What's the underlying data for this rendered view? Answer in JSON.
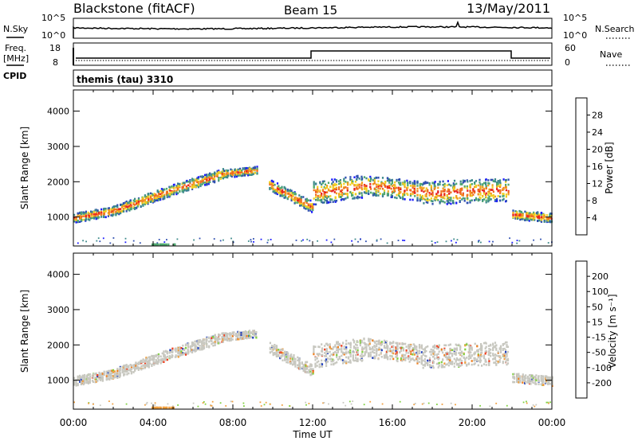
{
  "header": {
    "station": "Blackstone (fitACF)",
    "beam": "Beam 15",
    "date": "13/May/2011"
  },
  "noise_panel": {
    "left_label": "N.Sky",
    "left_ticks": [
      "10^5",
      "10^0"
    ],
    "right_label": "N.Search",
    "right_ticks": [
      "10^5",
      "10^0"
    ]
  },
  "freq_panel": {
    "left_label": "Freq.",
    "left_unit": "[MHz]",
    "left_ticks": [
      "18",
      "8"
    ],
    "right_label": "Nave",
    "right_ticks": [
      "60",
      "0"
    ],
    "cpid_label": "CPID",
    "cpid_value": "themis (tau) 3310"
  },
  "chart_data": [
    {
      "type": "heatmap",
      "name": "power",
      "ylabel": "Slant Range [km]",
      "xlabel": "",
      "yticks": [
        "1000",
        "2000",
        "3000",
        "4000"
      ],
      "xlim": [
        0,
        24
      ],
      "ylim": [
        180,
        4600
      ],
      "colorbar": {
        "label": "Power [dB]",
        "ticks": [
          "4",
          "8",
          "12",
          "16",
          "20",
          "24",
          "28"
        ],
        "range": [
          0,
          32
        ]
      },
      "bands": [
        {
          "x0": 0.0,
          "x1": 2.0,
          "c0": 950,
          "c1": 1150,
          "w": 260
        },
        {
          "x0": 2.0,
          "x1": 5.0,
          "c0": 1150,
          "c1": 1750,
          "w": 300
        },
        {
          "x0": 5.0,
          "x1": 7.5,
          "c0": 1750,
          "c1": 2200,
          "w": 300
        },
        {
          "x0": 7.5,
          "x1": 9.2,
          "c0": 2200,
          "c1": 2300,
          "w": 220
        },
        {
          "x0": 9.8,
          "x1": 12.0,
          "c0": 1900,
          "c1": 1250,
          "w": 320
        },
        {
          "x0": 12.0,
          "x1": 14.5,
          "c0": 1650,
          "c1": 1850,
          "w": 650
        },
        {
          "x0": 14.5,
          "x1": 17.5,
          "c0": 1900,
          "c1": 1700,
          "w": 550
        },
        {
          "x0": 17.5,
          "x1": 21.8,
          "c0": 1650,
          "c1": 1750,
          "w": 650
        },
        {
          "x0": 22.0,
          "x1": 24.0,
          "c0": 1050,
          "c1": 950,
          "w": 260
        }
      ]
    },
    {
      "type": "heatmap",
      "name": "velocity",
      "ylabel": "Slant Range [km]",
      "xlabel": "Time UT",
      "xticks": [
        "00:00",
        "04:00",
        "08:00",
        "12:00",
        "16:00",
        "20:00",
        "00:00"
      ],
      "yticks": [
        "1000",
        "2000",
        "3000",
        "4000"
      ],
      "xlim": [
        0,
        24
      ],
      "ylim": [
        180,
        4600
      ],
      "colorbar": {
        "label": "Velocity [m s⁻¹]",
        "ticks": [
          "200",
          "100",
          "50",
          "15",
          "-15",
          "-50",
          "-100",
          "-200"
        ]
      }
    }
  ],
  "colors": {
    "power_scale": [
      "#1a1aff",
      "#2f4fb0",
      "#3d8a8a",
      "#50a870",
      "#f0d020",
      "#f0a020",
      "#f07020",
      "#e82020"
    ],
    "velocity_scale": [
      "#2040c0",
      "#3050c8",
      "#208050",
      "#80d040",
      "#c8c8c0",
      "#f0a040",
      "#f08020",
      "#f04020",
      "#e82020"
    ]
  }
}
